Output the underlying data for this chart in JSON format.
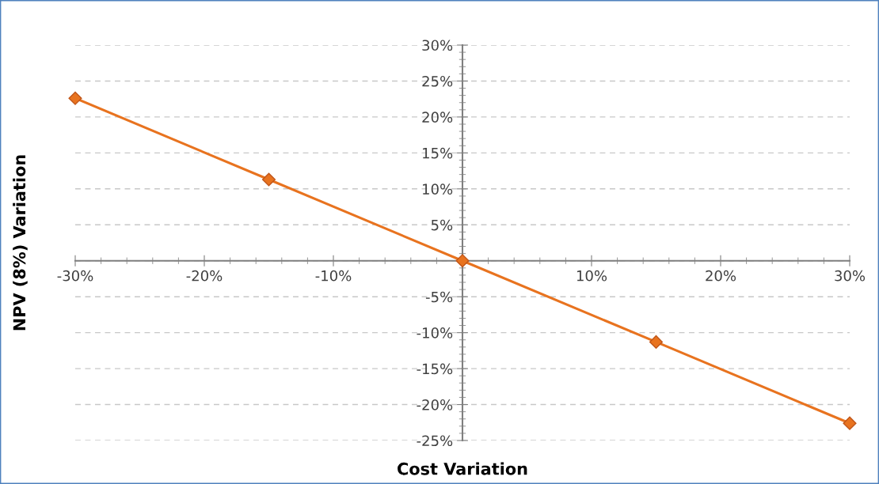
{
  "chart_data": {
    "type": "line",
    "xlabel": "Cost Variation",
    "ylabel": "NPV (8%) Variation",
    "x": [
      -30,
      -15,
      0,
      15,
      30
    ],
    "series": [
      {
        "color": "#e8731f",
        "values": [
          22.6,
          11.3,
          0,
          -11.3,
          -22.6
        ]
      }
    ],
    "xlim": [
      -30,
      30
    ],
    "xticks": [
      {
        "value": -30,
        "label": "-30%"
      },
      {
        "value": -20,
        "label": "-20%"
      },
      {
        "value": -10,
        "label": "-10%"
      },
      {
        "value": 0,
        "label": null
      },
      {
        "value": 10,
        "label": "10%"
      },
      {
        "value": 20,
        "label": "20%"
      },
      {
        "value": 30,
        "label": "30%"
      }
    ],
    "ylim": [
      -25,
      30
    ],
    "yticks": [
      {
        "value": -25,
        "label": "-25%"
      },
      {
        "value": -20,
        "label": "-20%"
      },
      {
        "value": -15,
        "label": "-15%"
      },
      {
        "value": -10,
        "label": "-10%"
      },
      {
        "value": -5,
        "label": "-5%"
      },
      {
        "value": 0,
        "label": null
      },
      {
        "value": 5,
        "label": "5%"
      },
      {
        "value": 10,
        "label": "10%"
      },
      {
        "value": 15,
        "label": "15%"
      },
      {
        "value": 20,
        "label": "20%"
      },
      {
        "value": 25,
        "label": "25%"
      },
      {
        "value": 30,
        "label": "30%"
      }
    ],
    "grid": "y",
    "marker": "diamond",
    "line_style": "solid"
  }
}
